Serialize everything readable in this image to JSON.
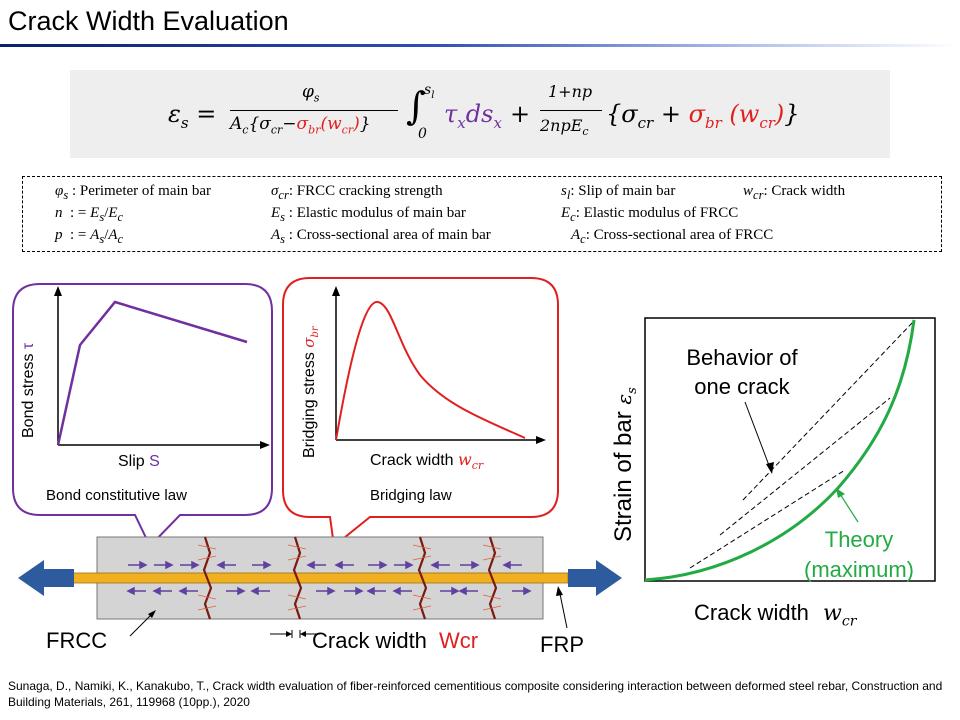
{
  "slide": {
    "title": "Crack Width Evaluation",
    "reference": "Sunaga, D., Namiki, K., Kanakubo, T., Crack width evaluation of fiber-reinforced cementitious composite considering interaction between deformed steel rebar, Construction and Building Materials, 261, 119968 (10pp.), 2020"
  },
  "formula": {
    "lhs": "εs",
    "numerator1": "φs",
    "denominator1_a": "Ac{σcr−",
    "denominator1_b": "σbr",
    "denominator1_c": "(wcr)",
    "denominator1_d": "}",
    "integral": "∫0sl τx dsx",
    "numerator2": "1+np",
    "denominator2": "2npEc",
    "tail_a": "{σcr +",
    "tail_b": "σbr",
    "tail_c": "(wcr)",
    "tail_d": "}"
  },
  "definitions": [
    {
      "sym": "φs",
      "text": " : Perimeter of main bar"
    },
    {
      "sym": "σcr",
      "text": ": FRCC cracking strength"
    },
    {
      "sym": "sl",
      "text": ": Slip of main bar"
    },
    {
      "sym": "wcr",
      "text": ": Crack width"
    },
    {
      "sym": "n",
      "text": "  : = Es/Ec"
    },
    {
      "sym": "Es",
      "text": " : Elastic modulus of main bar"
    },
    {
      "sym": "Ec",
      "text": ": Elastic modulus of FRCC"
    },
    {
      "sym": "p",
      "text": "  : = As/Ac"
    },
    {
      "sym": "As",
      "text": " : Cross-sectional area of main bar"
    },
    {
      "sym": "Ac",
      "text": ": Cross-sectional area of FRCC"
    }
  ],
  "bond_panel": {
    "ylabel": "Bond stress",
    "ylabel_sym": "τ",
    "xlabel": "Slip",
    "xlabel_sym": "S",
    "caption": "Bond constitutive law",
    "color": "#7030a0"
  },
  "bridging_panel": {
    "ylabel": "Bridging stress",
    "ylabel_sym": "σbr",
    "xlabel": "Crack width",
    "xlabel_sym": "wcr",
    "caption": "Bridging law",
    "color": "#e02020"
  },
  "specimen": {
    "frcc_label": "FRCC",
    "crack_label": "Crack width",
    "crack_sym": "Wcr",
    "frp_label": "FRP"
  },
  "strain_chart": {
    "ylabel": "Strain of bar",
    "ylabel_sym": "εs",
    "xlabel": "Crack width",
    "xlabel_sym": "wcr",
    "annotation_one_crack_line1": "Behavior of",
    "annotation_one_crack_line2": "one crack",
    "theory_line1": "Theory",
    "theory_line2": "(maximum)",
    "theory_color": "#22aa44"
  }
}
